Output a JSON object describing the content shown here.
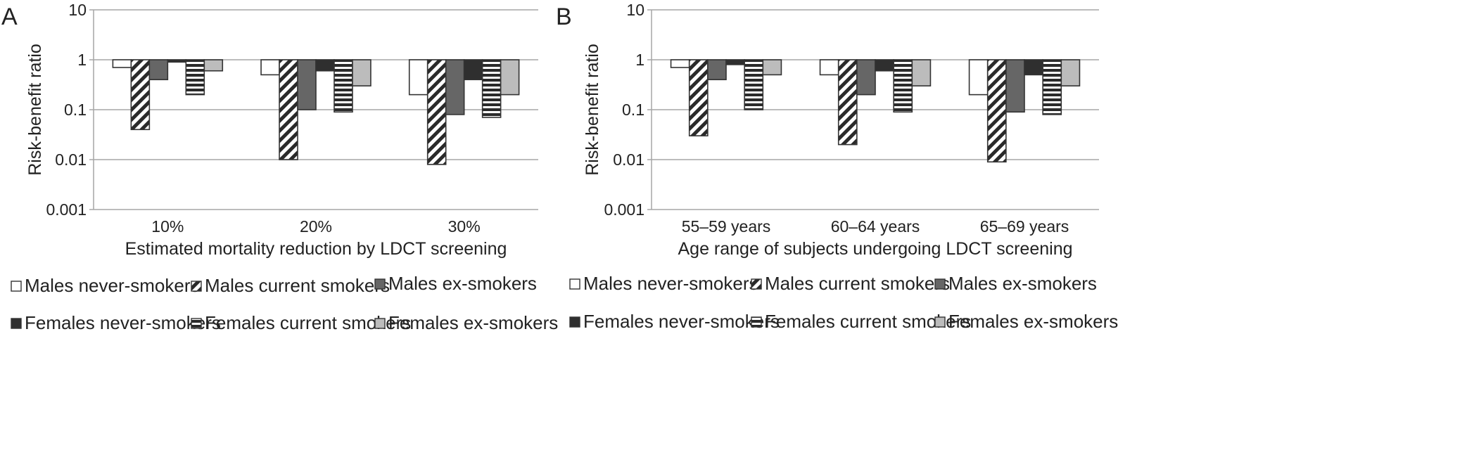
{
  "chart_data": [
    {
      "panel": "A",
      "type": "bar",
      "ylabel": "Risk-benefit ratio",
      "xlabel": "Estimated mortality reduction by LDCT screening",
      "yscale": "log",
      "ylim": [
        0.001,
        10
      ],
      "ytick_labels": [
        "10",
        "1",
        "0.1",
        "0.01",
        "0.001"
      ],
      "ytick_values": [
        10,
        1,
        0.1,
        0.01,
        0.001
      ],
      "grid": true,
      "bar_baseline": 1,
      "categories": [
        "10%",
        "20%",
        "30%"
      ],
      "series": [
        {
          "name": "Males never-smokers",
          "values": [
            0.7,
            0.5,
            0.2
          ]
        },
        {
          "name": "Males current smokers",
          "values": [
            0.04,
            0.01,
            0.008
          ]
        },
        {
          "name": "Males ex-smokers",
          "values": [
            0.4,
            0.1,
            0.08
          ]
        },
        {
          "name": "Females never-smokers",
          "values": [
            0.9,
            0.6,
            0.4
          ]
        },
        {
          "name": "Females current smokers",
          "values": [
            0.2,
            0.09,
            0.07
          ]
        },
        {
          "name": "Females ex-smokers",
          "values": [
            0.6,
            0.3,
            0.2
          ]
        }
      ]
    },
    {
      "panel": "B",
      "type": "bar",
      "ylabel": "Risk-benefit ratio",
      "xlabel": "Age range of subjects undergoing LDCT screening",
      "yscale": "log",
      "ylim": [
        0.001,
        10
      ],
      "ytick_labels": [
        "10",
        "1",
        "0.1",
        "0.01",
        "0.001"
      ],
      "ytick_values": [
        10,
        1,
        0.1,
        0.01,
        0.001
      ],
      "grid": true,
      "bar_baseline": 1,
      "categories": [
        "55–59 years",
        "60–64 years",
        "65–69 years"
      ],
      "series": [
        {
          "name": "Males never-smokers",
          "values": [
            0.7,
            0.5,
            0.2
          ]
        },
        {
          "name": "Males current smokers",
          "values": [
            0.03,
            0.02,
            0.009
          ]
        },
        {
          "name": "Males ex-smokers",
          "values": [
            0.4,
            0.2,
            0.09
          ]
        },
        {
          "name": "Females never-smokers",
          "values": [
            0.8,
            0.6,
            0.5
          ]
        },
        {
          "name": "Females current smokers",
          "values": [
            0.1,
            0.09,
            0.08
          ]
        },
        {
          "name": "Females ex-smokers",
          "values": [
            0.5,
            0.3,
            0.3
          ]
        }
      ]
    }
  ],
  "style": {
    "series_fills": [
      "white",
      "diag-hatch",
      "#666666",
      "#2f2f2f",
      "hstripe-hatch",
      "#bcbcbc"
    ],
    "bar_outline": "#333333",
    "grid_color": "#a6a6a6",
    "axis_color": "#a6a6a6"
  }
}
